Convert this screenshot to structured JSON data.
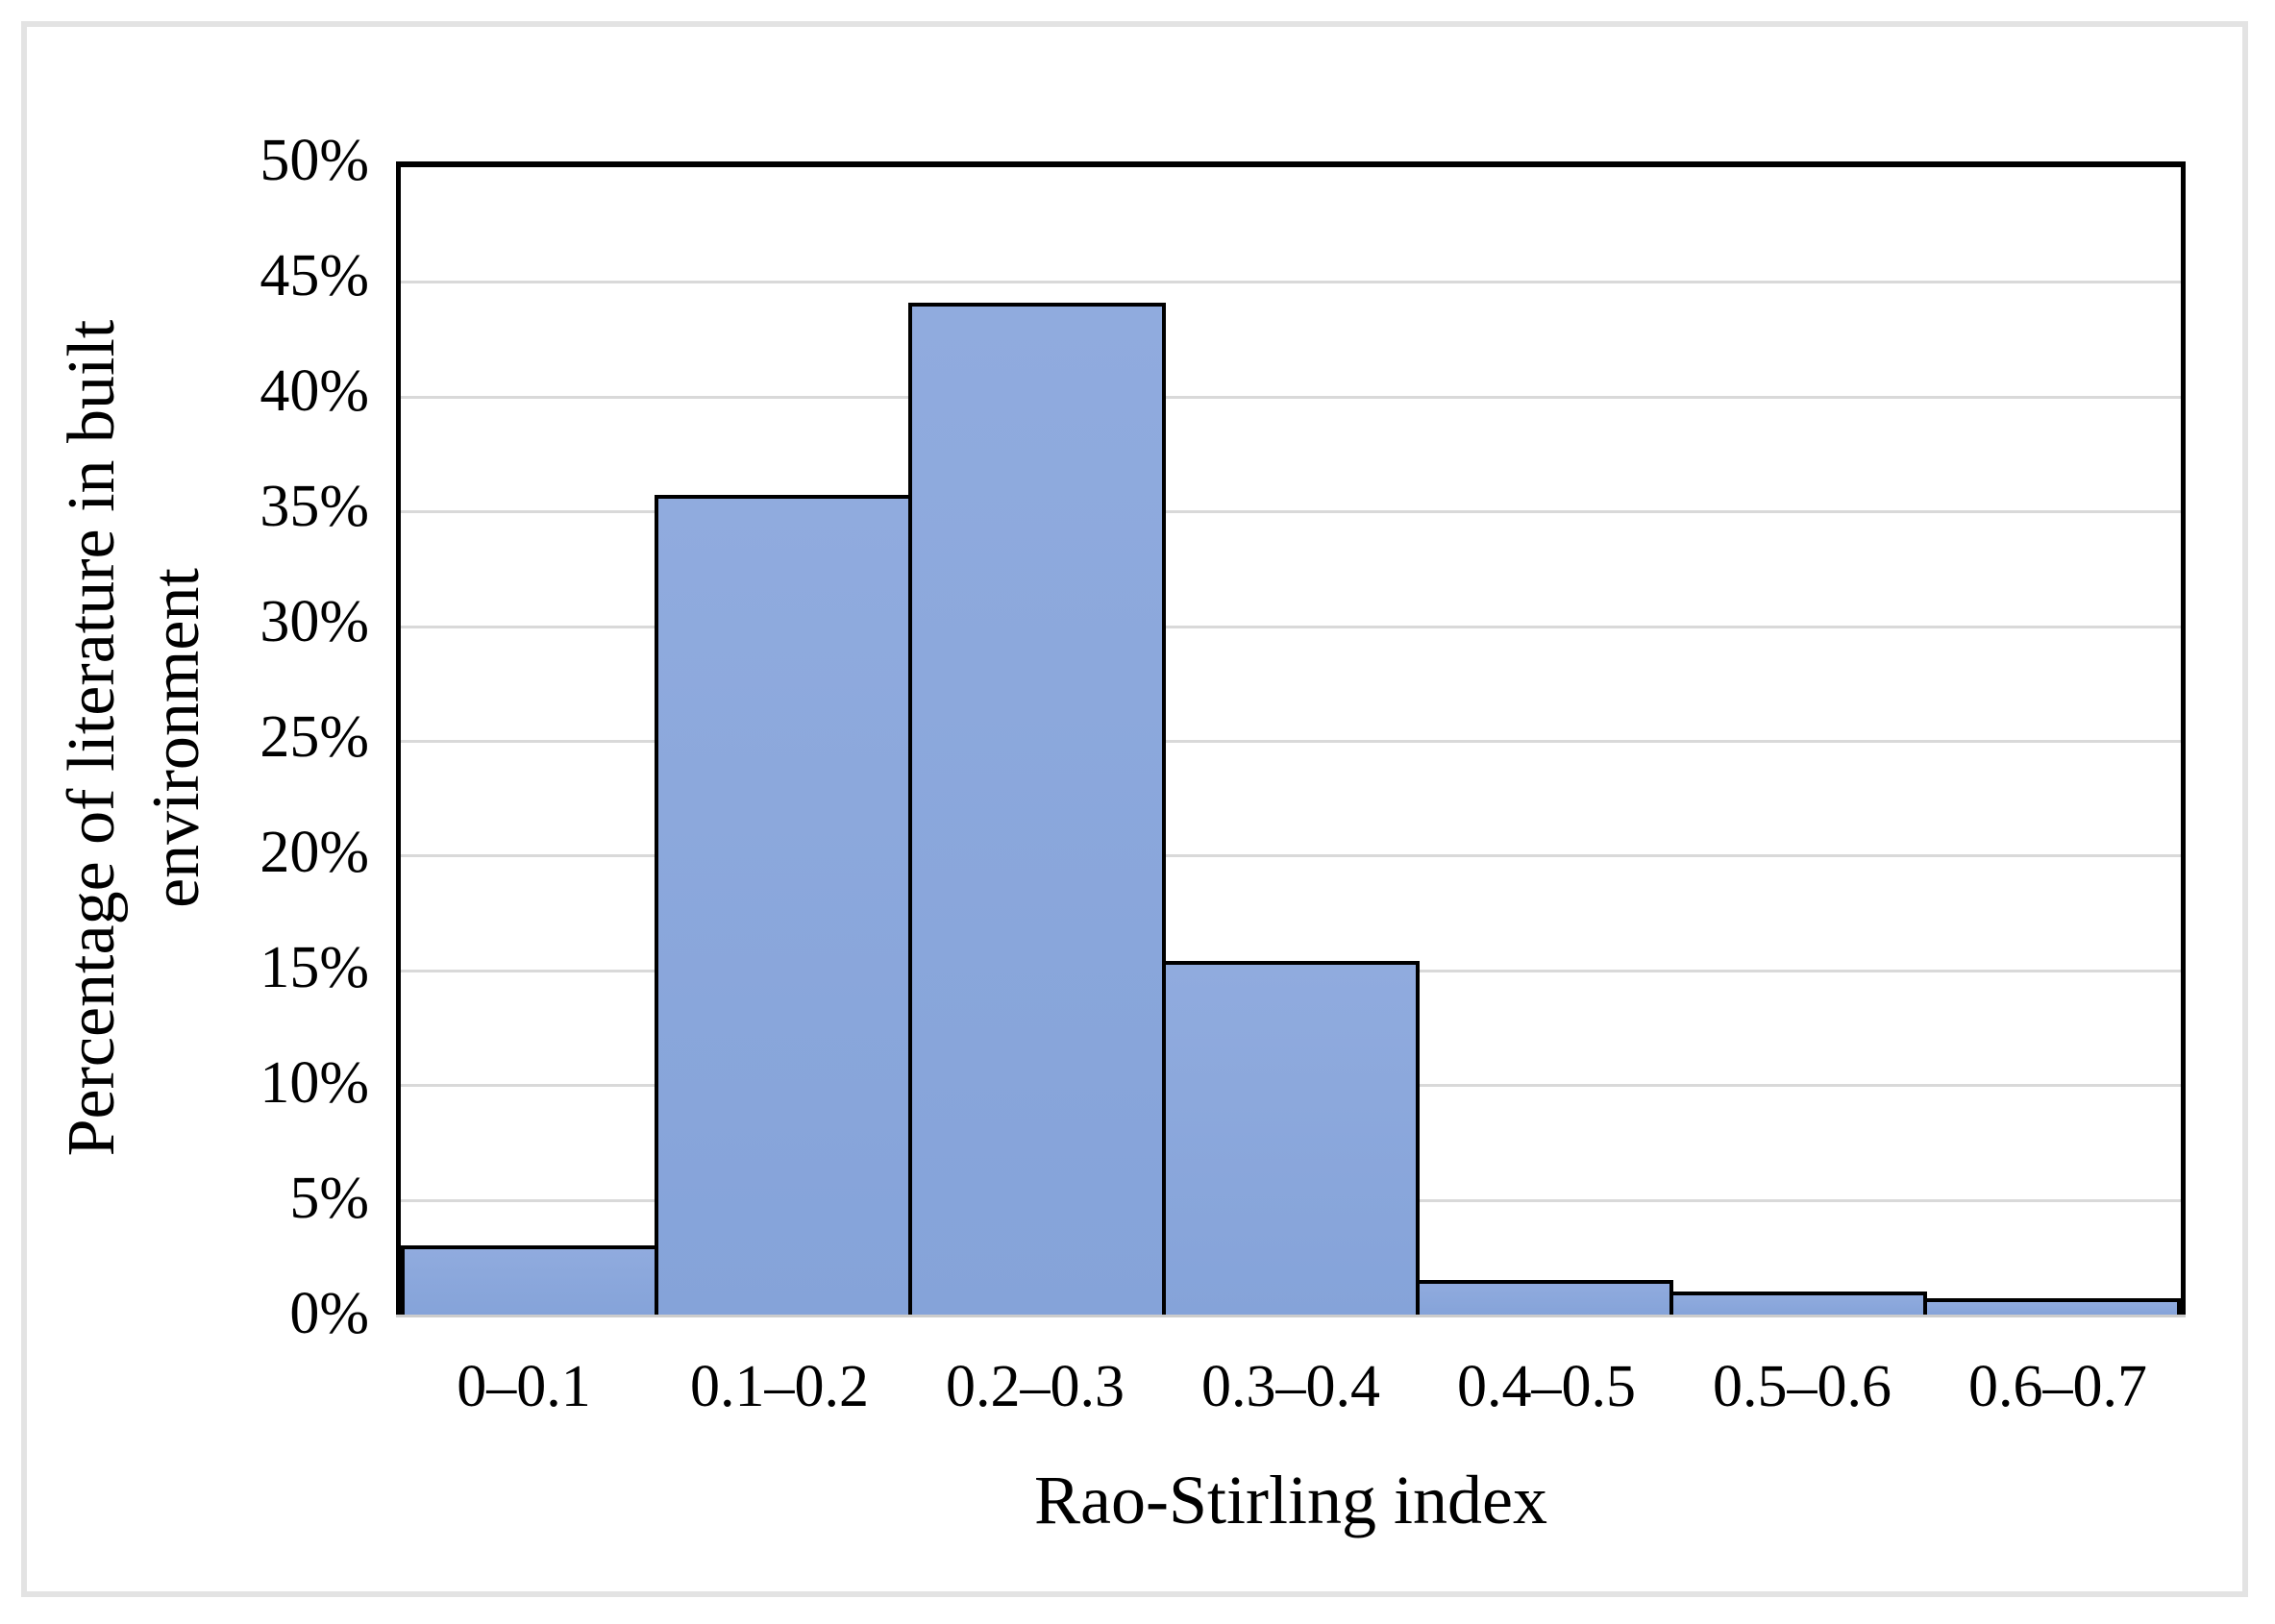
{
  "chart_data": {
    "type": "bar",
    "subtype": "histogram",
    "categories": [
      "0–0.1",
      "0.1–0.2",
      "0.2–0.3",
      "0.3–0.4",
      "0.4–0.5",
      "0.5–0.6",
      "0.6–0.7"
    ],
    "values": [
      3.0,
      35.7,
      44.1,
      15.4,
      1.5,
      1.0,
      0.7
    ],
    "title": "",
    "xlabel": "Rao-Stirling index",
    "ylabel": "Percentage of literature in built environment",
    "ylabel_lines": [
      "Percentage of literature in built",
      "environment"
    ],
    "ylim": [
      0,
      50
    ],
    "ytick_step": 5,
    "ytick_suffix": "%",
    "grid": "horizontal",
    "legend": "none",
    "gap_width": 0,
    "colors": {
      "bar_fill": "#89a6db",
      "bar_fill_top": "#90abde",
      "bar_fill_bottom": "#85a3d9",
      "bar_border": "#000000",
      "gridline": "#d9d9d9",
      "axis_line": "#000000",
      "baseline": "#cccccc",
      "figure_frame": "#e3e3e3",
      "background": "#ffffff",
      "text": "#000000"
    }
  }
}
